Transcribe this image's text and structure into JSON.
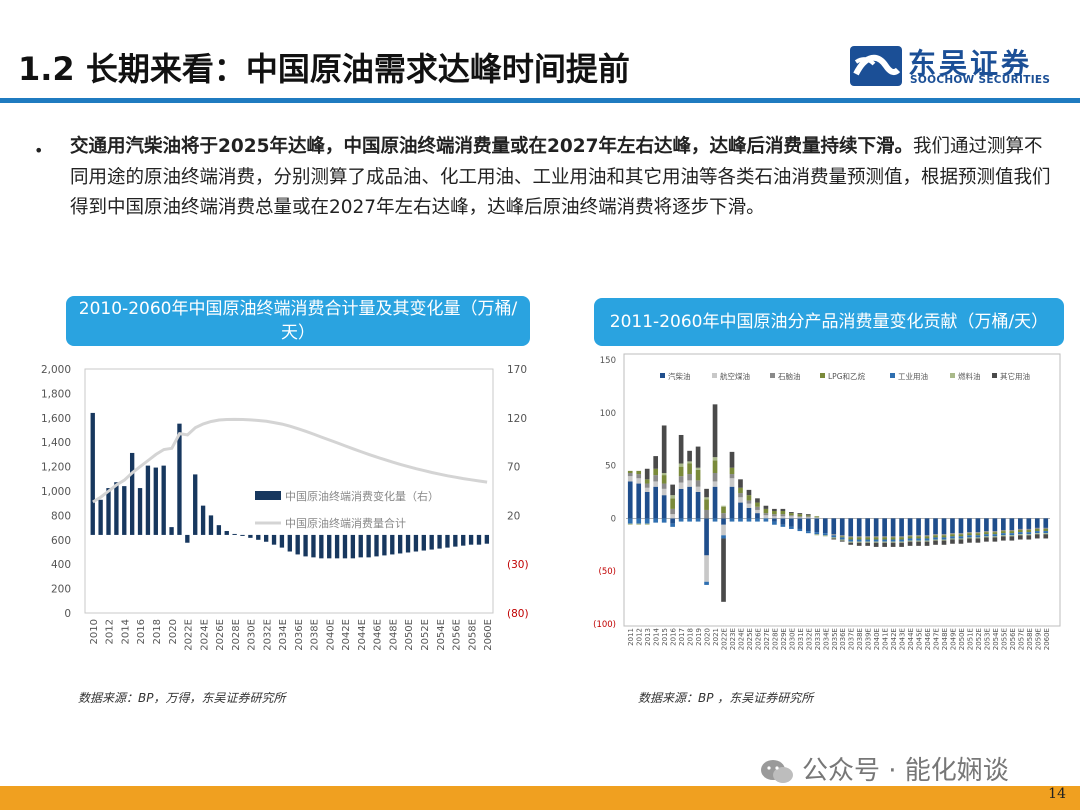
{
  "header": {
    "title": "1.2 长期来看：中国原油需求达峰时间提前",
    "logo_cn": "东吴证券",
    "logo_en": "SOOCHOW SECURITIES",
    "logo_icon": "soochow-logo-icon"
  },
  "body": {
    "bullet": "•",
    "lead": "交通用汽柴油将于2025年达峰，中国原油终端消费量或在2027年左右达峰，达峰后消费量持续下滑。",
    "text": "我们通过测算不同用途的原油终端消费，分别测算了成品油、化工用油、工业用油和其它用油等各类石油消费量预测值，根据预测值我们得到中国原油终端消费总量或在2027年左右达峰，达峰后原油终端消费将逐步下滑。"
  },
  "chart1_title": "2010-2060年中国原油终端消费合计量及其变化量（万桶/天）",
  "chart2_title": "2011-2060年中国原油分产品消费量变化贡献（万桶/天）",
  "source1": "数据来源：BP，万得，东吴证券研究所",
  "source2": "数据来源：BP ，东吴证券研究所",
  "watermark": "公众号 · 能化娴谈",
  "page_number": "14",
  "colors": {
    "accent": "#1f7bc0",
    "title_box": "#2aa3e0",
    "bar_dark": "#17375e",
    "line_gray": "#d4d4d4",
    "footer": "#f0a020",
    "neg_label": "#c00000"
  },
  "chart_data": [
    {
      "type": "bar+line",
      "categories": [
        "2010",
        "2011",
        "2012",
        "2013",
        "2014",
        "2015",
        "2016",
        "2017",
        "2018",
        "2019",
        "2020",
        "2021",
        "2022E",
        "2023E",
        "2024E",
        "2025E",
        "2026E",
        "2027E",
        "2028E",
        "2029E",
        "2030E",
        "2031E",
        "2032E",
        "2033E",
        "2034E",
        "2035E",
        "2036E",
        "2037E",
        "2038E",
        "2039E",
        "2040E",
        "2041E",
        "2042E",
        "2043E",
        "2044E",
        "2045E",
        "2046E",
        "2047E",
        "2048E",
        "2049E",
        "2050E",
        "2051E",
        "2052E",
        "2053E",
        "2054E",
        "2055E",
        "2056E",
        "2057E",
        "2058E",
        "2059E",
        "2060E"
      ],
      "x_tick_labels": [
        "2010",
        "2012",
        "2014",
        "2016",
        "2018",
        "2020",
        "2022E",
        "2024E",
        "2026E",
        "2028E",
        "2030E",
        "2032E",
        "2034E",
        "2036E",
        "2038E",
        "2040E",
        "2042E",
        "2044E",
        "2046E",
        "2048E",
        "2050E",
        "2052E",
        "2054E",
        "2056E",
        "2058E",
        "2060E"
      ],
      "y_left_ticks": [
        "2,000",
        "1,800",
        "1,600",
        "1,400",
        "1,200",
        "1,000",
        "800",
        "600",
        "400",
        "200",
        "0"
      ],
      "y_right_ticks": [
        "170",
        "120",
        "70",
        "20",
        "(30)",
        "(80)"
      ],
      "ylim_left": [
        0,
        2000
      ],
      "ylim_right": [
        -80,
        170
      ],
      "series": [
        {
          "name": "中国原油终端消费变化量（右）",
          "axis": "right",
          "kind": "bar",
          "values": [
            125,
            36,
            48,
            54,
            50,
            84,
            48,
            71,
            69,
            71,
            8,
            114,
            -8,
            62,
            30,
            20,
            10,
            4,
            1,
            -1,
            -3,
            -5,
            -7,
            -10,
            -13,
            -17,
            -20,
            -22,
            -23,
            -24,
            -24,
            -24,
            -24,
            -24,
            -23,
            -23,
            -22,
            -21,
            -20,
            -19,
            -18,
            -17,
            -16,
            -15,
            -14,
            -13,
            -12,
            -11,
            -10,
            -10,
            -9
          ]
        },
        {
          "name": "中国原油终端消费量合计",
          "axis": "left",
          "kind": "line",
          "values": [
            910,
            950,
            1000,
            1050,
            1090,
            1150,
            1200,
            1250,
            1300,
            1340,
            1350,
            1470,
            1460,
            1520,
            1550,
            1570,
            1582,
            1586,
            1587,
            1586,
            1583,
            1578,
            1571,
            1561,
            1548,
            1531,
            1511,
            1489,
            1466,
            1442,
            1418,
            1394,
            1370,
            1346,
            1323,
            1300,
            1278,
            1257,
            1237,
            1218,
            1200,
            1183,
            1167,
            1152,
            1138,
            1125,
            1113,
            1102,
            1092,
            1082,
            1073
          ]
        }
      ],
      "legend_position": "center-right"
    },
    {
      "type": "stacked-bar",
      "categories": [
        "2011",
        "2012",
        "2013",
        "2014",
        "2015",
        "2016",
        "2017",
        "2018",
        "2019",
        "2020",
        "2021",
        "2022E",
        "2023E",
        "2024E",
        "2025E",
        "2026E",
        "2027E",
        "2028E",
        "2029E",
        "2030E",
        "2031E",
        "2032E",
        "2033E",
        "2034E",
        "2035E",
        "2036E",
        "2037E",
        "2038E",
        "2039E",
        "2040E",
        "2041E",
        "2042E",
        "2043E",
        "2044E",
        "2045E",
        "2046E",
        "2047E",
        "2048E",
        "2049E",
        "2050E",
        "2051E",
        "2052E",
        "2053E",
        "2054E",
        "2055E",
        "2056E",
        "2057E",
        "2058E",
        "2059E",
        "2060E"
      ],
      "y_ticks": [
        "150",
        "100",
        "50",
        "0",
        "(50)",
        "(100)"
      ],
      "ylim": [
        -100,
        150
      ],
      "series": [
        {
          "name": "汽柴油",
          "color": "#1f4e8c",
          "values": [
            35,
            33,
            25,
            30,
            22,
            -5,
            28,
            30,
            25,
            -35,
            30,
            -6,
            30,
            15,
            10,
            5,
            0,
            -3,
            -6,
            -8,
            -10,
            -12,
            -13,
            -14,
            -15,
            -16,
            -17,
            -17,
            -17,
            -17,
            -17,
            -17,
            -17,
            -16,
            -16,
            -16,
            -15,
            -15,
            -14,
            -14,
            -13,
            -13,
            -12,
            -12,
            -11,
            -11,
            -10,
            -10,
            -9,
            -9
          ]
        },
        {
          "name": "航空煤油",
          "color": "#c8c8c8",
          "values": [
            5,
            5,
            4,
            5,
            6,
            4,
            6,
            6,
            5,
            -25,
            5,
            -10,
            8,
            5,
            4,
            3,
            3,
            2,
            2,
            2,
            1,
            1,
            1,
            0,
            0,
            0,
            0,
            0,
            0,
            0,
            0,
            0,
            0,
            0,
            0,
            0,
            0,
            0,
            0,
            0,
            0,
            0,
            0,
            0,
            0,
            0,
            0,
            0,
            0,
            0
          ]
        },
        {
          "name": "石脑油",
          "color": "#8a8a8a",
          "values": [
            3,
            4,
            4,
            6,
            5,
            5,
            6,
            6,
            6,
            8,
            8,
            5,
            4,
            4,
            3,
            3,
            2,
            2,
            2,
            1,
            1,
            1,
            0,
            0,
            -1,
            -1,
            -1,
            -1,
            -1,
            -1,
            -1,
            -1,
            -1,
            -1,
            -1,
            -1,
            -1,
            -1,
            -1,
            -1,
            -1,
            -1,
            -1,
            -1,
            -1,
            -1,
            -1,
            -1,
            -1,
            -1
          ]
        },
        {
          "name": "LPG和乙烷",
          "color": "#7a8a3a",
          "values": [
            2,
            3,
            4,
            6,
            8,
            10,
            9,
            10,
            10,
            10,
            12,
            6,
            6,
            5,
            5,
            4,
            4,
            3,
            3,
            2,
            2,
            1,
            1,
            0,
            0,
            -1,
            -2,
            -2,
            -2,
            -2,
            -2,
            -2,
            -2,
            -2,
            -2,
            -2,
            -2,
            -2,
            -2,
            -2,
            -2,
            -2,
            -2,
            -2,
            -2,
            -2,
            -2,
            -2,
            -2,
            -2
          ]
        },
        {
          "name": "工业用油",
          "color": "#2f6fb0",
          "values": [
            -5,
            -5,
            -5,
            -4,
            -4,
            -3,
            -3,
            -3,
            -3,
            -3,
            -3,
            -3,
            -3,
            -3,
            -3,
            -3,
            -3,
            -3,
            -2,
            -2,
            -2,
            -2,
            -2,
            -2,
            -2,
            -2,
            -2,
            -2,
            -2,
            -2,
            -2,
            -2,
            -2,
            -2,
            -2,
            -2,
            -2,
            -2,
            -2,
            -2,
            -2,
            -2,
            -2,
            -2,
            -2,
            -2,
            -2,
            -2,
            -2,
            -2
          ]
        },
        {
          "name": "燃料油",
          "color": "#a9b98a",
          "values": [
            -1,
            -1,
            -1,
            0,
            2,
            3,
            3,
            2,
            2,
            2,
            3,
            1,
            0,
            0,
            0,
            0,
            0,
            0,
            0,
            0,
            0,
            0,
            -1,
            -1,
            -1,
            -1,
            -1,
            -1,
            -1,
            -1,
            -1,
            -1,
            -1,
            -1,
            -1,
            -1,
            -1,
            -1,
            -1,
            -1,
            -1,
            -1,
            -1,
            -1,
            -1,
            -1,
            -1,
            -1,
            -1,
            -1
          ]
        },
        {
          "name": "其它用油",
          "color": "#4a4a4a",
          "values": [
            0,
            0,
            10,
            12,
            45,
            10,
            27,
            10,
            20,
            8,
            50,
            -60,
            15,
            8,
            5,
            4,
            3,
            2,
            2,
            1,
            1,
            1,
            0,
            0,
            -1,
            -1,
            -2,
            -3,
            -3,
            -4,
            -4,
            -4,
            -4,
            -4,
            -4,
            -4,
            -4,
            -4,
            -4,
            -4,
            -4,
            -4,
            -4,
            -4,
            -4,
            -4,
            -4,
            -4,
            -4,
            -4
          ]
        }
      ],
      "legend_position": "top"
    }
  ]
}
